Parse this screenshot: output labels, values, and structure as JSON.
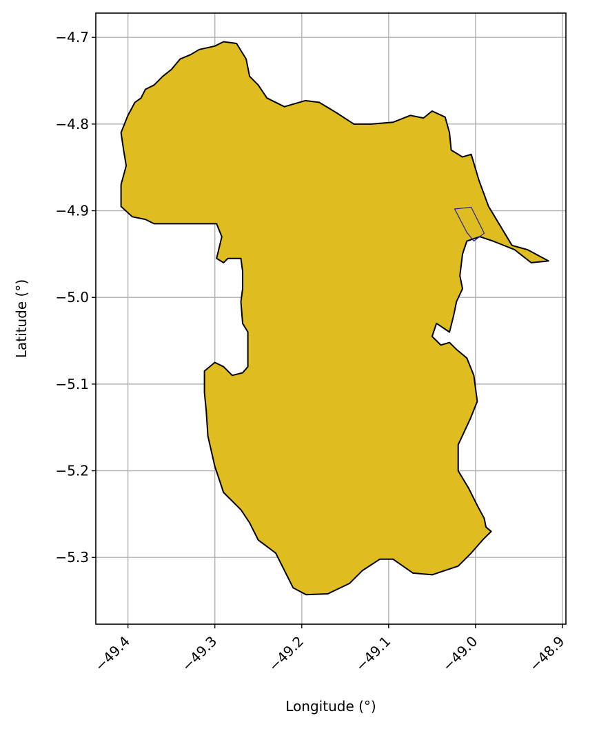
{
  "chart_data": {
    "type": "map",
    "title": "",
    "xlabel": "Longitude (°)",
    "ylabel": "Latitude (°)",
    "xlim": [
      -49.437,
      -48.896
    ],
    "ylim": [
      -5.377,
      -4.672
    ],
    "grid": true,
    "x_ticks": [
      -49.4,
      -49.3,
      -49.2,
      -49.1,
      -49.0,
      -48.9
    ],
    "x_tick_labels": [
      "−49.4",
      "−49.3",
      "−49.2",
      "−49.1",
      "−49.0",
      "−48.9"
    ],
    "y_ticks": [
      -4.7,
      -4.8,
      -4.9,
      -5.0,
      -5.1,
      -5.2,
      -5.3
    ],
    "y_tick_labels": [
      "−4.7",
      "−4.8",
      "−4.9",
      "−5.0",
      "−5.1",
      "−5.2",
      "−5.3"
    ],
    "x_tick_rotation_deg": 45,
    "colors": {
      "region_fill": "#dfbd20",
      "region_edge": "#000000",
      "inset_edge": "#1f1fa8",
      "grid": "#b0b0b0"
    },
    "region": {
      "outline": [
        [
          -49.3,
          -4.71
        ],
        [
          -49.29,
          -4.705
        ],
        [
          -49.275,
          -4.707
        ],
        [
          -49.264,
          -4.725
        ],
        [
          -49.26,
          -4.745
        ],
        [
          -49.25,
          -4.755
        ],
        [
          -49.24,
          -4.77
        ],
        [
          -49.22,
          -4.78
        ],
        [
          -49.196,
          -4.773
        ],
        [
          -49.18,
          -4.775
        ],
        [
          -49.16,
          -4.787
        ],
        [
          -49.14,
          -4.8
        ],
        [
          -49.12,
          -4.8
        ],
        [
          -49.095,
          -4.798
        ],
        [
          -49.075,
          -4.79
        ],
        [
          -49.06,
          -4.793
        ],
        [
          -49.05,
          -4.785
        ],
        [
          -49.035,
          -4.792
        ],
        [
          -49.03,
          -4.81
        ],
        [
          -49.028,
          -4.83
        ],
        [
          -49.015,
          -4.838
        ],
        [
          -49.005,
          -4.835
        ],
        [
          -48.996,
          -4.865
        ],
        [
          -48.985,
          -4.895
        ],
        [
          -48.97,
          -4.92
        ],
        [
          -48.958,
          -4.94
        ],
        [
          -48.94,
          -4.945
        ],
        [
          -48.916,
          -4.958
        ],
        [
          -48.936,
          -4.96
        ],
        [
          -48.955,
          -4.945
        ],
        [
          -48.98,
          -4.935
        ],
        [
          -48.995,
          -4.93
        ],
        [
          -49.01,
          -4.935
        ],
        [
          -49.015,
          -4.95
        ],
        [
          -49.018,
          -4.975
        ],
        [
          -49.015,
          -4.99
        ],
        [
          -49.022,
          -5.005
        ],
        [
          -49.025,
          -5.02
        ],
        [
          -49.03,
          -5.04
        ],
        [
          -49.045,
          -5.03
        ],
        [
          -49.05,
          -5.045
        ],
        [
          -49.04,
          -5.055
        ],
        [
          -49.03,
          -5.052
        ],
        [
          -49.022,
          -5.06
        ],
        [
          -49.01,
          -5.07
        ],
        [
          -49.002,
          -5.09
        ],
        [
          -48.998,
          -5.12
        ],
        [
          -49.006,
          -5.14
        ],
        [
          -49.02,
          -5.17
        ],
        [
          -49.02,
          -5.2
        ],
        [
          -49.008,
          -5.22
        ],
        [
          -48.998,
          -5.24
        ],
        [
          -48.99,
          -5.255
        ],
        [
          -48.988,
          -5.265
        ],
        [
          -48.982,
          -5.27
        ],
        [
          -48.992,
          -5.28
        ],
        [
          -49.005,
          -5.295
        ],
        [
          -49.02,
          -5.31
        ],
        [
          -49.05,
          -5.32
        ],
        [
          -49.072,
          -5.318
        ],
        [
          -49.095,
          -5.302
        ],
        [
          -49.11,
          -5.302
        ],
        [
          -49.13,
          -5.315
        ],
        [
          -49.145,
          -5.33
        ],
        [
          -49.17,
          -5.342
        ],
        [
          -49.195,
          -5.343
        ],
        [
          -49.21,
          -5.335
        ],
        [
          -49.22,
          -5.315
        ],
        [
          -49.23,
          -5.295
        ],
        [
          -49.25,
          -5.28
        ],
        [
          -49.26,
          -5.26
        ],
        [
          -49.27,
          -5.245
        ],
        [
          -49.29,
          -5.225
        ],
        [
          -49.3,
          -5.195
        ],
        [
          -49.308,
          -5.16
        ],
        [
          -49.31,
          -5.13
        ],
        [
          -49.312,
          -5.11
        ],
        [
          -49.312,
          -5.085
        ],
        [
          -49.3,
          -5.075
        ],
        [
          -49.29,
          -5.08
        ],
        [
          -49.28,
          -5.09
        ],
        [
          -49.268,
          -5.087
        ],
        [
          -49.262,
          -5.08
        ],
        [
          -49.262,
          -5.04
        ],
        [
          -49.268,
          -5.03
        ],
        [
          -49.27,
          -5.005
        ],
        [
          -49.268,
          -4.99
        ],
        [
          -49.268,
          -4.97
        ],
        [
          -49.27,
          -4.955
        ],
        [
          -49.285,
          -4.955
        ],
        [
          -49.29,
          -4.96
        ],
        [
          -49.298,
          -4.955
        ],
        [
          -49.292,
          -4.93
        ],
        [
          -49.298,
          -4.915
        ],
        [
          -49.34,
          -4.915
        ],
        [
          -49.37,
          -4.915
        ],
        [
          -49.38,
          -4.91
        ],
        [
          -49.395,
          -4.907
        ],
        [
          -49.408,
          -4.895
        ],
        [
          -49.408,
          -4.87
        ],
        [
          -49.402,
          -4.848
        ],
        [
          -49.405,
          -4.83
        ],
        [
          -49.408,
          -4.81
        ],
        [
          -49.4,
          -4.79
        ],
        [
          -49.392,
          -4.775
        ],
        [
          -49.385,
          -4.77
        ],
        [
          -49.38,
          -4.76
        ],
        [
          -49.37,
          -4.755
        ],
        [
          -49.36,
          -4.745
        ],
        [
          -49.35,
          -4.737
        ],
        [
          -49.34,
          -4.725
        ],
        [
          -49.328,
          -4.72
        ],
        [
          -49.318,
          -4.714
        ]
      ],
      "inset_polygon": [
        [
          -49.024,
          -4.898
        ],
        [
          -49.005,
          -4.896
        ],
        [
          -48.99,
          -4.926
        ],
        [
          -49.002,
          -4.935
        ],
        [
          -49.01,
          -4.925
        ]
      ]
    }
  }
}
